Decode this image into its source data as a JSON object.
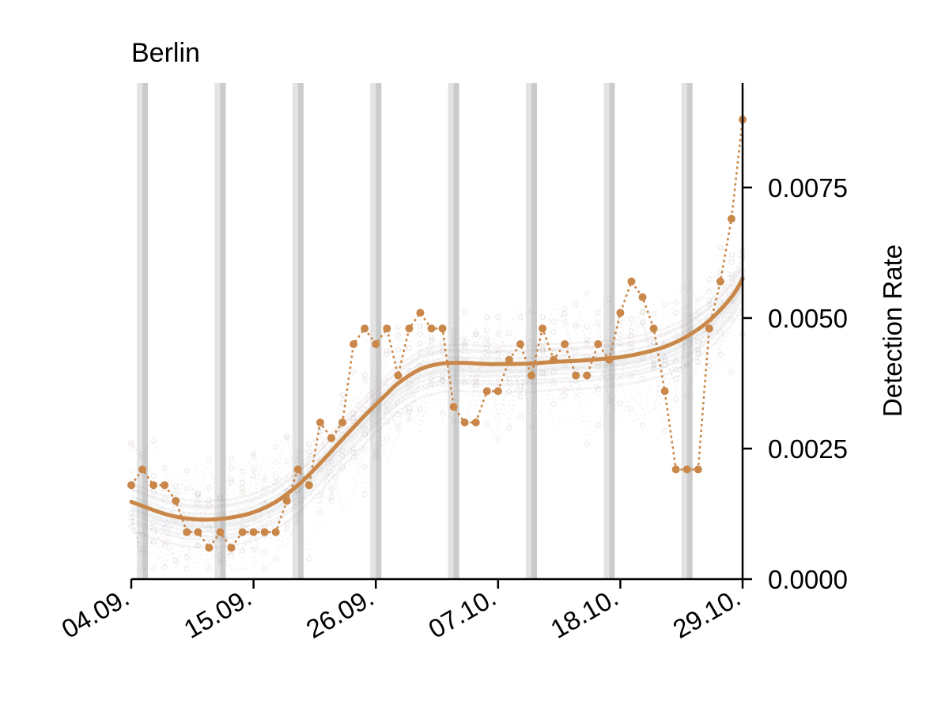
{
  "chart_data": {
    "type": "line",
    "title": "Berlin",
    "xlabel": "",
    "ylabel": "Detection Rate",
    "y_axis_side": "right",
    "ylim": [
      0.0,
      0.0095
    ],
    "xlim_day": [
      0,
      55
    ],
    "x_ticks": [
      {
        "day": 0,
        "label": "04.09."
      },
      {
        "day": 11,
        "label": "15.09."
      },
      {
        "day": 22,
        "label": "26.09."
      },
      {
        "day": 33,
        "label": "07.10."
      },
      {
        "day": 44,
        "label": "18.10."
      },
      {
        "day": 55,
        "label": "29.10."
      }
    ],
    "y_ticks": [
      {
        "value": 0.0,
        "label": "0.0000"
      },
      {
        "value": 0.0025,
        "label": "0.0025"
      },
      {
        "value": 0.005,
        "label": "0.0050"
      },
      {
        "value": 0.0075,
        "label": "0.0075"
      }
    ],
    "weekend_bands": [
      [
        0.5,
        1.5
      ],
      [
        7.5,
        8.5
      ],
      [
        14.5,
        15.5
      ],
      [
        21.5,
        22.5
      ],
      [
        28.5,
        29.5
      ],
      [
        35.5,
        36.5
      ],
      [
        42.5,
        43.5
      ],
      [
        49.5,
        50.5
      ]
    ],
    "series": [
      {
        "role": "daily",
        "style": "dotted-with-markers",
        "color": "#c9874a",
        "x_day": [
          0,
          1,
          2,
          3,
          4,
          5,
          6,
          7,
          8,
          9,
          10,
          11,
          12,
          13,
          14,
          15,
          16,
          17,
          18,
          19,
          20,
          21,
          22,
          23,
          24,
          25,
          26,
          27,
          28,
          29,
          30,
          31,
          32,
          33,
          34,
          35,
          36,
          37,
          38,
          39,
          40,
          41,
          42,
          43,
          44,
          45,
          46,
          47,
          48,
          49,
          50,
          51,
          52,
          53,
          54,
          55
        ],
        "values": [
          0.0018,
          0.0021,
          0.0018,
          0.0018,
          0.0015,
          0.0009,
          0.0009,
          0.0006,
          0.0009,
          0.0006,
          0.0009,
          0.0009,
          0.0009,
          0.0009,
          0.0015,
          0.0021,
          0.0018,
          0.003,
          0.0027,
          0.003,
          0.0045,
          0.0048,
          0.0045,
          0.0048,
          0.0039,
          0.0048,
          0.0051,
          0.0048,
          0.0048,
          0.0033,
          0.003,
          0.003,
          0.0036,
          0.0036,
          0.0042,
          0.0045,
          0.0039,
          0.0048,
          0.0042,
          0.0045,
          0.0039,
          0.0039,
          0.0045,
          0.0042,
          0.0051,
          0.0057,
          0.0054,
          0.0048,
          0.0036,
          0.0021,
          0.0021,
          0.0021,
          0.0048,
          0.0057,
          0.0069,
          0.0088
        ]
      },
      {
        "role": "smoothed",
        "style": "solid",
        "color": "#c9874a",
        "x_day": [
          0,
          3,
          5,
          7,
          9,
          11,
          13,
          15,
          17,
          19,
          21,
          23,
          24,
          26,
          28,
          30,
          32,
          34,
          36,
          38,
          40,
          42,
          44,
          46,
          48,
          50,
          52,
          54,
          55
        ],
        "values": [
          0.00148,
          0.00125,
          0.00116,
          0.00114,
          0.00118,
          0.00128,
          0.00148,
          0.0018,
          0.00222,
          0.00268,
          0.00313,
          0.00355,
          0.00375,
          0.00402,
          0.00413,
          0.00414,
          0.00412,
          0.00412,
          0.00413,
          0.00416,
          0.00418,
          0.00421,
          0.00425,
          0.00433,
          0.00445,
          0.00465,
          0.00495,
          0.0054,
          0.00575
        ]
      }
    ],
    "colors": {
      "accent": "#c9874a",
      "weekend_light": "#e3e3e3",
      "weekend_dark": "#cbcbcb",
      "background_faint": [
        "#b58fa0",
        "#8f8fb0",
        "#a0b08f",
        "#b0a08f",
        "#9aa0b0"
      ]
    }
  }
}
